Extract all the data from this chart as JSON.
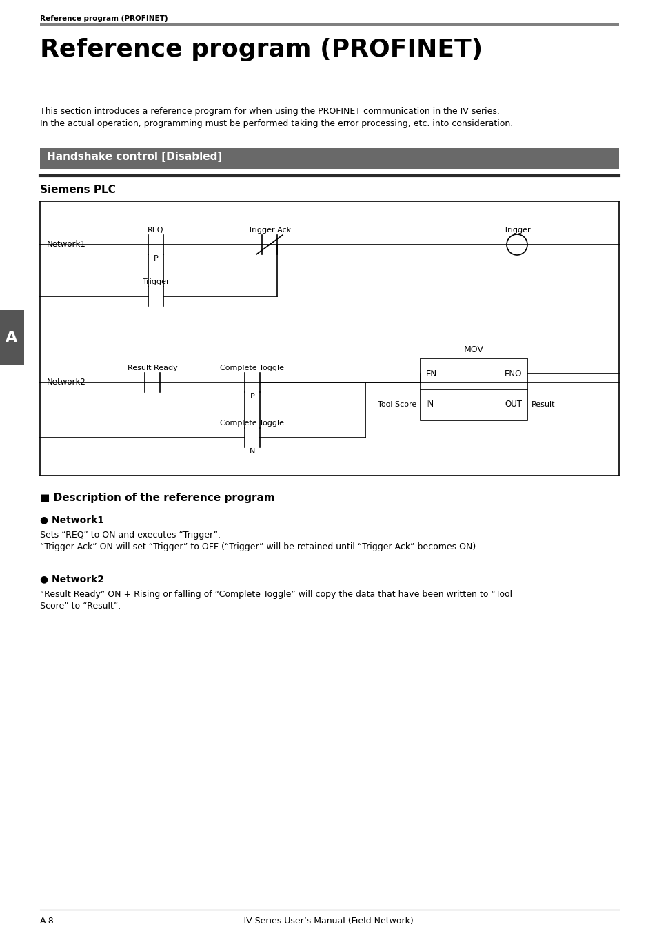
{
  "page_bg": "#ffffff",
  "header_text": "Reference program (PROFINET)",
  "header_line_color": "#808080",
  "title": "Reference program (PROFINET)",
  "intro_line1": "This section introduces a reference program for when using the PROFINET communication in the IV series.",
  "intro_line2": "In the actual operation, programming must be performed taking the error processing, etc. into consideration.",
  "section_bg": "#696969",
  "section_text": "Handshake control [Disabled]",
  "section_text_color": "#ffffff",
  "siemens_title": "Siemens PLC",
  "tab_label": "A",
  "tab_bg": "#555555",
  "tab_text_color": "#ffffff",
  "desc_title": "■ Description of the reference program",
  "net1_title": "● Network1",
  "net1_line1": "Sets “REQ” to ON and executes “Trigger”.",
  "net1_line2": "“Trigger Ack” ON will set “Trigger” to OFF (“Trigger” will be retained until “Trigger Ack” becomes ON).",
  "net2_title": "● Network2",
  "net2_line1": "“Result Ready” ON + Rising or falling of “Complete Toggle” will copy the data that have been written to “Tool",
  "net2_line2": "Score” to “Result”.",
  "footer_left": "A-8",
  "footer_center": "- IV Series User’s Manual (Field Network) -"
}
